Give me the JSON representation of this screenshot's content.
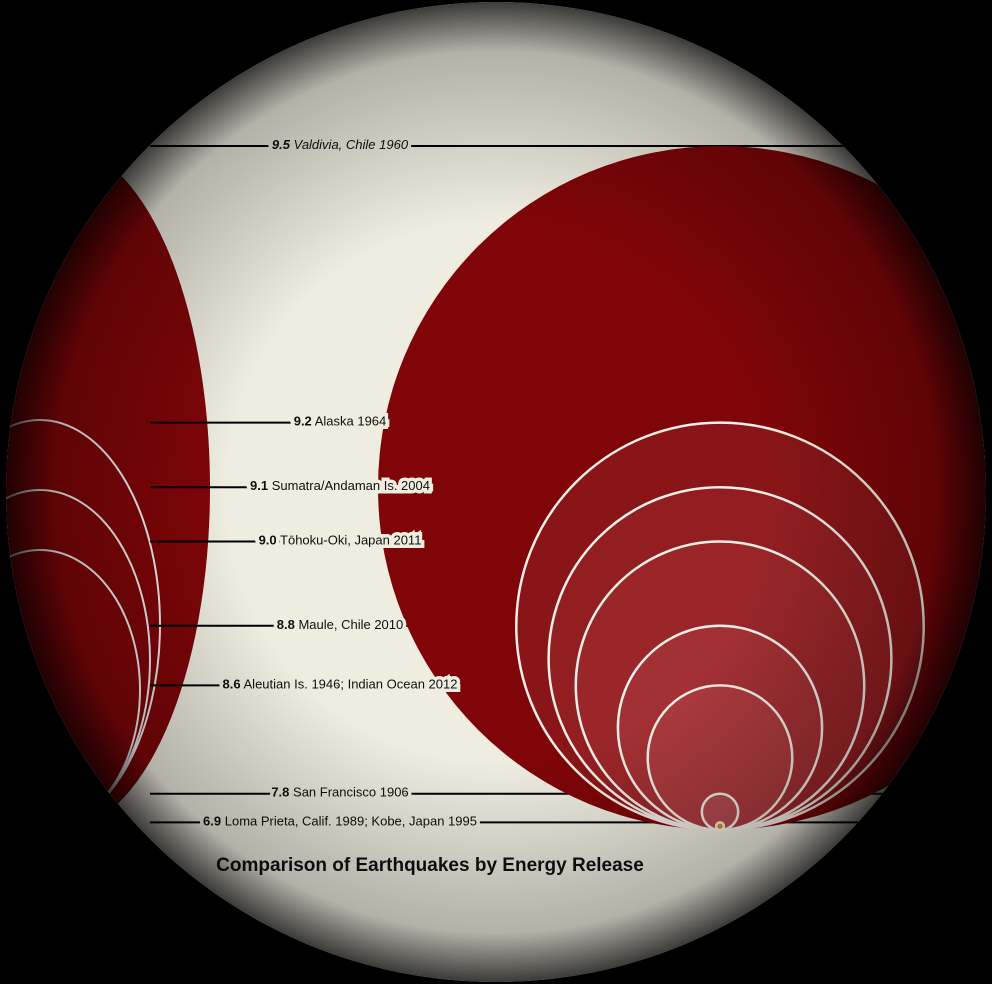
{
  "chart_data": {
    "type": "nested-circles",
    "title": "Comparison of Earthquakes by Energy Release",
    "earthquakes": [
      {
        "magnitude": 9.5,
        "place": "Valdivia, Chile 1960",
        "color": "#7f0508"
      },
      {
        "magnitude": 9.2,
        "place": "Alaska 1964",
        "color": "#8a1518"
      },
      {
        "magnitude": 9.1,
        "place": "Sumatra/Andaman Is. 2004",
        "color": "#931e22"
      },
      {
        "magnitude": {
          "value": 9.0,
          "label": "9.0"
        },
        "place": "Tōhoku-Oki, Japan 2011",
        "color": "#9a262a"
      },
      {
        "magnitude": 8.8,
        "place": "Maule, Chile 2010",
        "color": "#a33034"
      },
      {
        "magnitude": 8.6,
        "place": "Aleutian Is. 1946; Indian Ocean 2012",
        "color": "#ab3a3e"
      },
      {
        "magnitude": 7.8,
        "place": "San Francisco 1906",
        "color": "#b54a4e"
      },
      {
        "magnitude": 6.9,
        "place": "Loma Prieta, Calif. 1989; Kobe, Japan 1995",
        "color": "#d98a1e"
      }
    ]
  }
}
